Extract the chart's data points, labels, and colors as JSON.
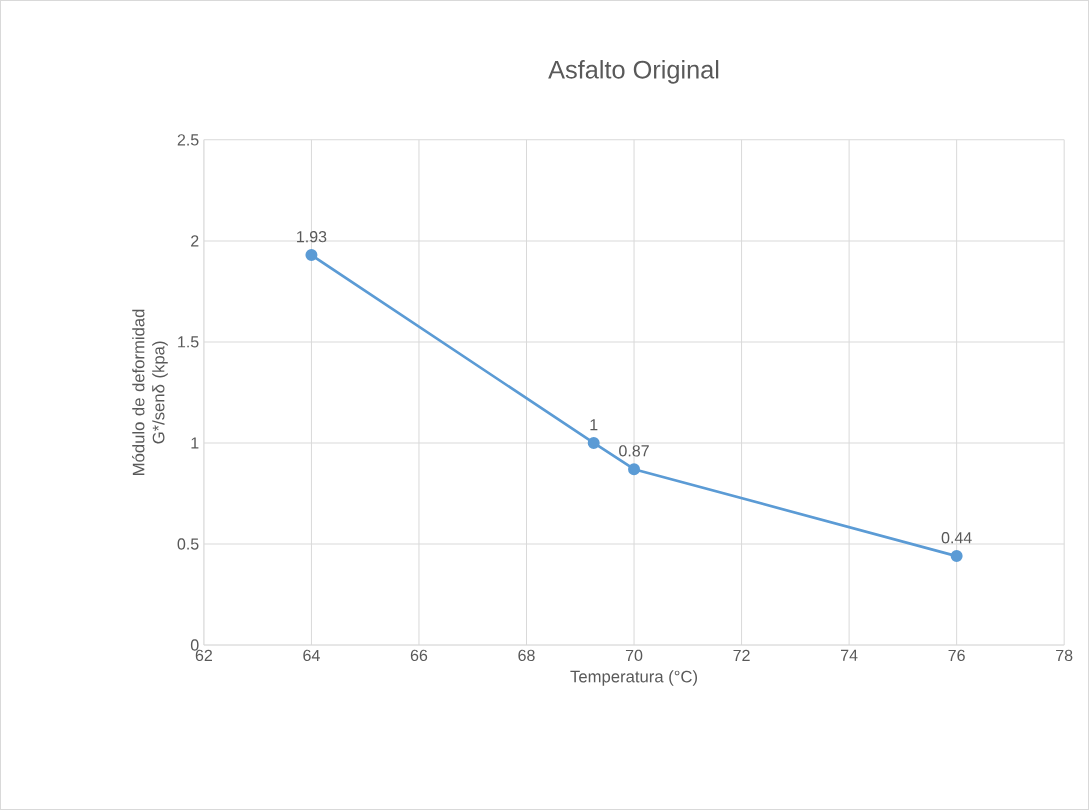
{
  "chart_data": {
    "type": "line",
    "title": "Asfalto Original",
    "xlabel": "Temperatura (°C)",
    "ylabel": "Módulo de deformidad G*/senδ (kpa)",
    "x": [
      64,
      69.25,
      70,
      76
    ],
    "series": [
      {
        "color": "#5b9bd5",
        "values": [
          1.93,
          1,
          0.87,
          0.44
        ]
      }
    ],
    "xlim": [
      62,
      78
    ],
    "xticks": [
      62,
      64,
      66,
      68,
      70,
      72,
      74,
      76,
      78
    ],
    "ylim": [
      0,
      2.5
    ],
    "yticks": [
      0,
      0.5,
      1,
      1.5,
      2,
      2.5
    ],
    "grid": true,
    "marker": "circle",
    "line_style": "solid",
    "data_labels": true
  }
}
